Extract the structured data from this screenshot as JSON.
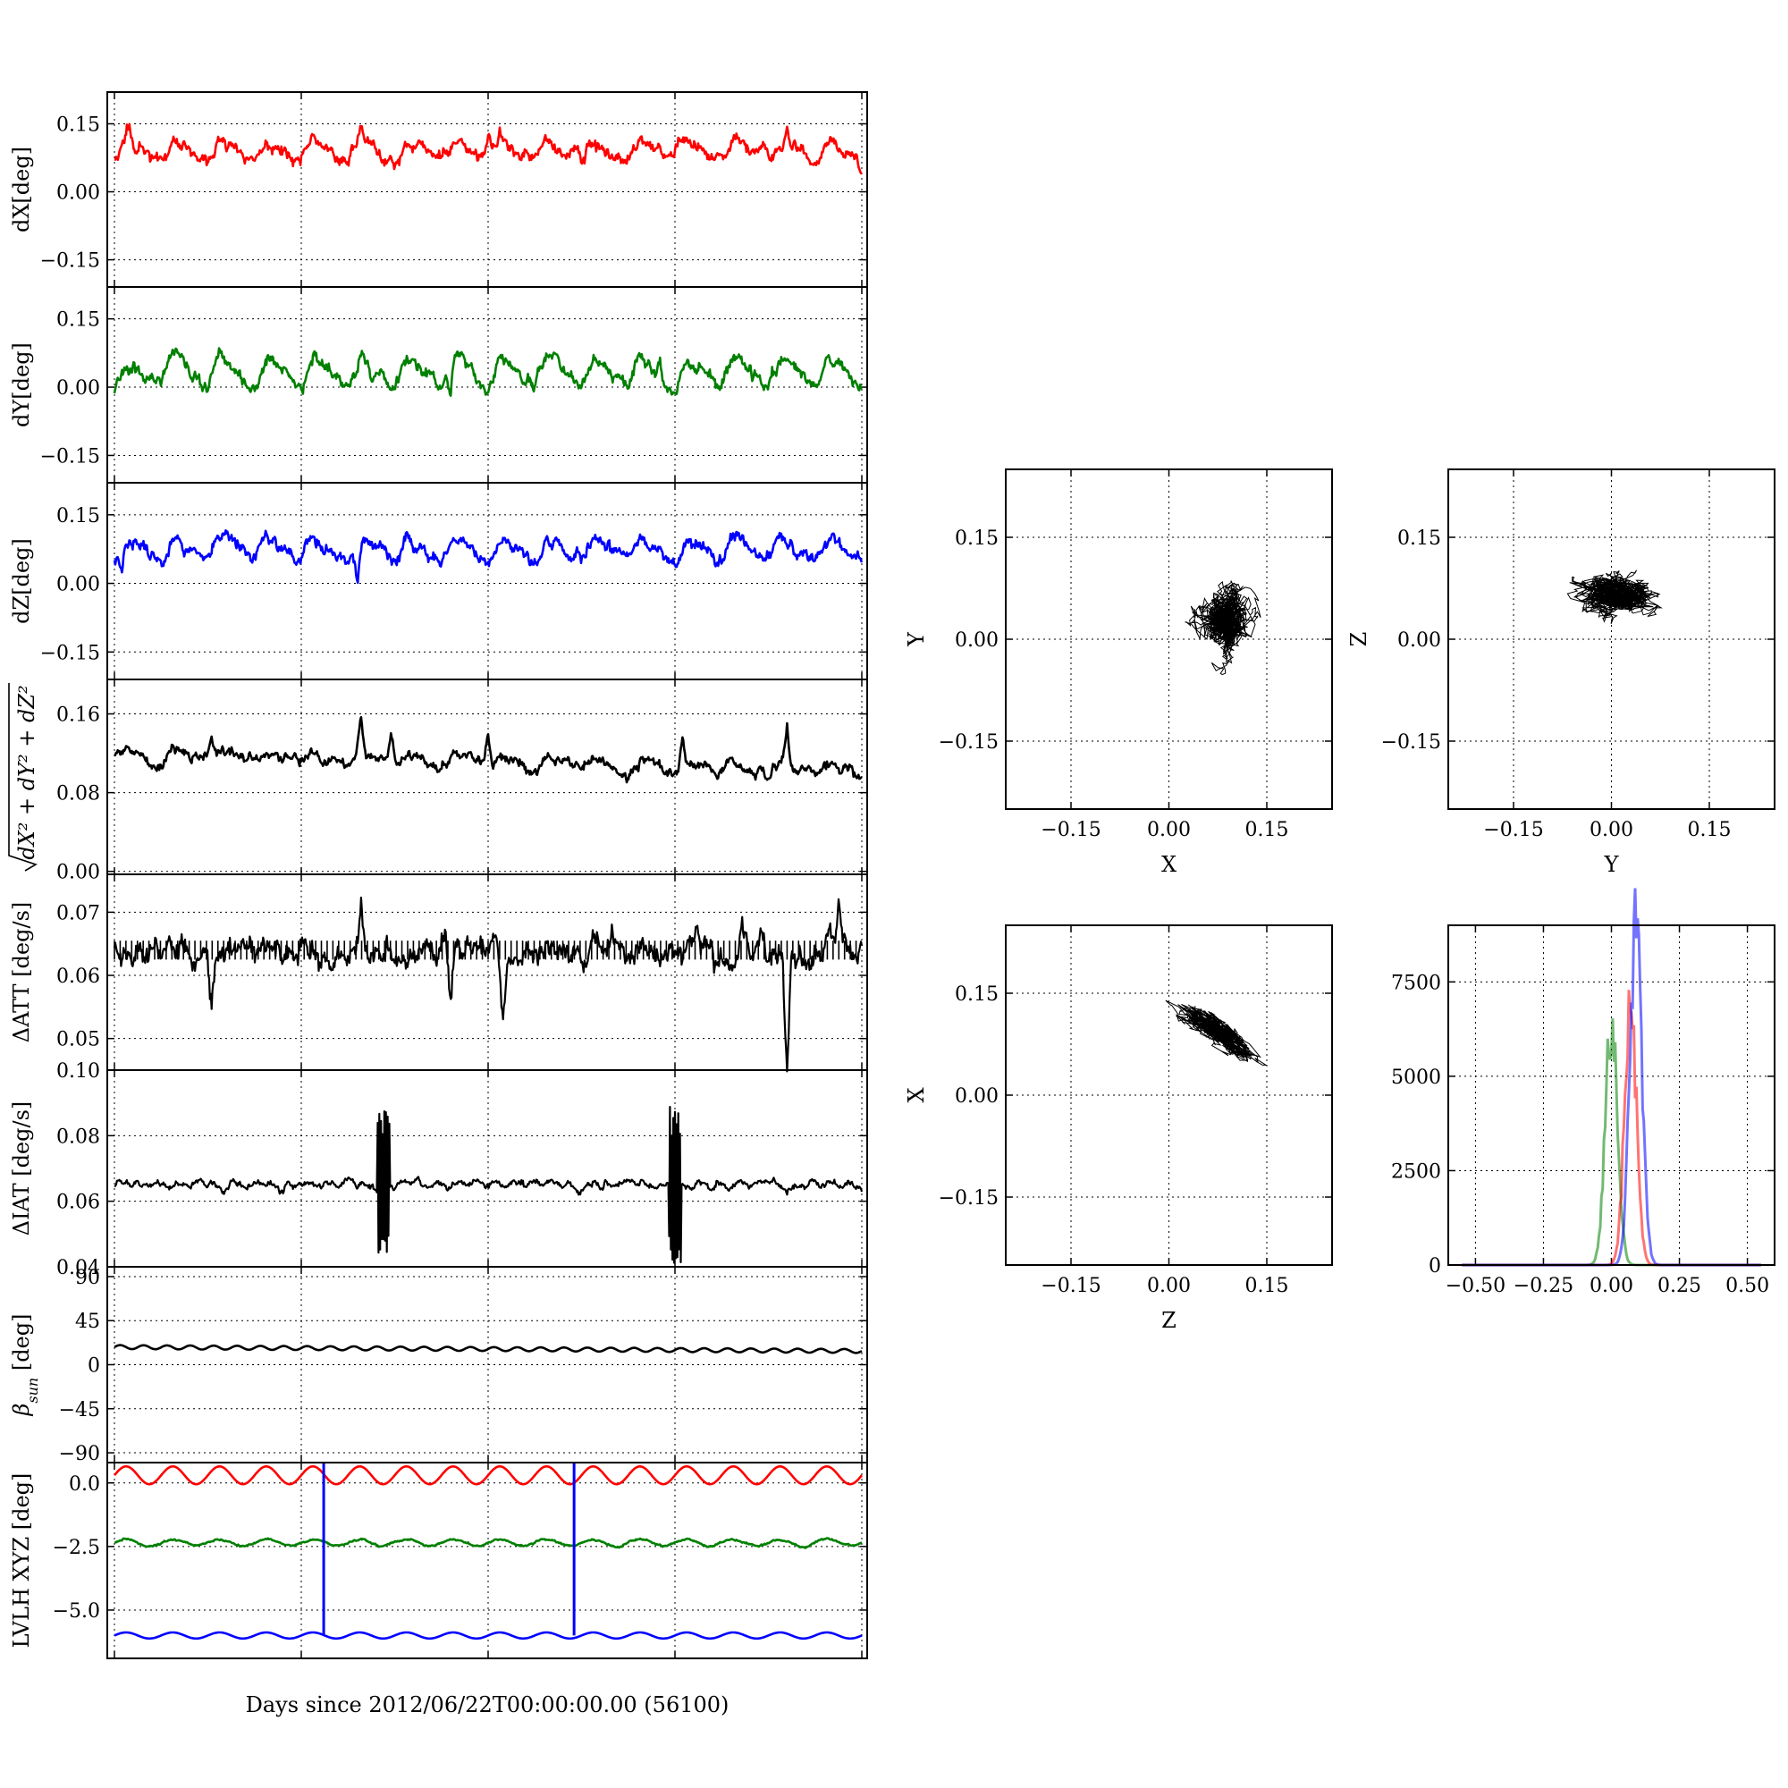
{
  "chart_data": [
    {
      "id": "dx",
      "type": "line",
      "ylabel": "dX[deg]",
      "ylim": [
        -0.21,
        0.22
      ],
      "yticks": [
        0.15,
        0.0,
        -0.15
      ],
      "ytick_labels": [
        "0.15",
        "0.00",
        "−0.15"
      ],
      "grid": true,
      "series": [
        {
          "color": "#ff0000",
          "baseline": 0.09,
          "amp": 0.022,
          "cycles": 16,
          "noise": 0.008,
          "seed": 11,
          "spikes": [
            [
              0.02,
              0.05
            ],
            [
              0.33,
              0.045
            ],
            [
              0.5,
              0.05
            ],
            [
              0.9,
              0.055
            ]
          ]
        }
      ]
    },
    {
      "id": "dy",
      "type": "line",
      "ylabel": "dY[deg]",
      "ylim": [
        -0.21,
        0.22
      ],
      "yticks": [
        0.15,
        0.0,
        -0.15
      ],
      "ytick_labels": [
        "0.15",
        "0.00",
        "−0.15"
      ],
      "grid": true,
      "series": [
        {
          "color": "#008000",
          "baseline": 0.03,
          "amp": 0.035,
          "cycles": 16,
          "noise": 0.008,
          "seed": 23,
          "spikes": [
            [
              0.45,
              -0.07
            ],
            [
              0.73,
              0.05
            ]
          ]
        }
      ]
    },
    {
      "id": "dz",
      "type": "line",
      "ylabel": "dZ[deg]",
      "ylim": [
        -0.21,
        0.22
      ],
      "yticks": [
        0.15,
        0.0,
        -0.15
      ],
      "ytick_labels": [
        "0.15",
        "0.00",
        "−0.15"
      ],
      "grid": true,
      "series": [
        {
          "color": "#0000ff",
          "baseline": 0.075,
          "amp": 0.025,
          "cycles": 16,
          "noise": 0.008,
          "seed": 37,
          "spikes": [
            [
              0.325,
              -0.09
            ],
            [
              0.01,
              -0.06
            ]
          ]
        }
      ]
    },
    {
      "id": "dr",
      "type": "line",
      "ylabel": "√(dX² + dY² + dZ²)",
      "ylim": [
        -0.003,
        0.195
      ],
      "yticks": [
        0.16,
        0.08,
        0.0
      ],
      "ytick_labels": [
        "0.16",
        "0.08",
        "0.00"
      ],
      "grid": true,
      "series": [
        {
          "color": "#000000",
          "baseline": 0.12,
          "trend": -0.018,
          "amp": 0.006,
          "cycles": 16,
          "noise": 0.003,
          "seed": 41,
          "spikes": [
            [
              0.13,
              0.02
            ],
            [
              0.33,
              0.035
            ],
            [
              0.37,
              0.03
            ],
            [
              0.5,
              0.035
            ],
            [
              0.76,
              0.03
            ],
            [
              0.9,
              0.04
            ]
          ]
        }
      ]
    },
    {
      "id": "datt",
      "type": "line",
      "ylabel": "ΔATT [deg/s]",
      "ylim": [
        0.045,
        0.076
      ],
      "yticks": [
        0.07,
        0.06,
        0.05
      ],
      "ytick_labels": [
        "0.07",
        "0.06",
        "0.05"
      ],
      "grid": true,
      "series": [
        {
          "color": "#000000",
          "baseline": 0.064,
          "amp": 0.0,
          "cycles": 0,
          "noise": 0.0012,
          "seed": 53,
          "spikes": [
            [
              0.13,
              -0.008
            ],
            [
              0.33,
              0.009
            ],
            [
              0.45,
              -0.007
            ],
            [
              0.52,
              -0.009
            ],
            [
              0.84,
              0.005
            ],
            [
              0.9,
              -0.02
            ],
            [
              0.97,
              0.006
            ]
          ]
        }
      ]
    },
    {
      "id": "diat",
      "type": "line",
      "ylabel": "ΔIAT [deg/s]",
      "ylim": [
        0.04,
        0.1
      ],
      "yticks": [
        0.1,
        0.08,
        0.06,
        0.04
      ],
      "ytick_labels": [
        "0.10",
        "0.08",
        "0.06",
        "0.04"
      ],
      "grid": true,
      "series": [
        {
          "color": "#000000",
          "baseline": 0.065,
          "amp": 0.0007,
          "cycles": 40,
          "noise": 0.0006,
          "seed": 61,
          "bursts": [
            [
              0.36,
              0.065,
              0.025
            ],
            [
              0.75,
              0.065,
              0.025
            ]
          ]
        }
      ]
    },
    {
      "id": "beta",
      "type": "line",
      "ylabel": "β_sun [deg]",
      "ylim": [
        -100,
        100
      ],
      "yticks": [
        90,
        45,
        0,
        -45,
        -90
      ],
      "ytick_labels": [
        "90",
        "45",
        "0",
        "−45",
        "−90"
      ],
      "grid": true,
      "series": [
        {
          "color": "#000000",
          "baseline": 18,
          "trend": -4,
          "amp": 2,
          "cycles": 32,
          "noise": 0.0,
          "seed": 71
        }
      ]
    },
    {
      "id": "lvlh",
      "type": "line",
      "ylabel": "LVLH XYZ [deg]",
      "xlabel": "Days since 2012/06/22T00:00:00.00 (56100)",
      "ylim": [
        -6.9,
        0.8
      ],
      "yticks": [
        0.0,
        -2.5,
        -5.0
      ],
      "ytick_labels": [
        "0.0",
        "−2.5",
        "−5.0"
      ],
      "grid": true,
      "series": [
        {
          "color": "#ff0000",
          "baseline": 0.3,
          "amp": 0.35,
          "cycles": 16,
          "noise": 0.0,
          "seed": 81
        },
        {
          "color": "#008000",
          "baseline": -2.35,
          "amp": 0.12,
          "cycles": 16,
          "noise": 0.02,
          "seed": 83
        },
        {
          "color": "#0000ff",
          "baseline": -6.0,
          "amp": 0.12,
          "cycles": 16,
          "noise": 0.0,
          "seed": 85,
          "vlines": [
            0.28,
            0.615
          ]
        }
      ]
    },
    {
      "id": "sc_xy",
      "type": "scatter",
      "xlabel": "X",
      "ylabel": "Y",
      "xlim": [
        -0.25,
        0.25
      ],
      "ylim": [
        -0.25,
        0.25
      ],
      "xticks": [
        -0.15,
        0.0,
        0.15
      ],
      "xtick_labels": [
        "−0.15",
        "0.00",
        "0.15"
      ],
      "yticks": [
        0.15,
        0.0,
        -0.15
      ],
      "ytick_labels": [
        "0.15",
        "0.00",
        "−0.15"
      ],
      "grid": true,
      "cloud": {
        "cx": 0.09,
        "cy": 0.03,
        "sx": 0.025,
        "sy": 0.03,
        "rot": 0.0,
        "n": 1400,
        "seed": 91,
        "color": "#000000"
      }
    },
    {
      "id": "sc_yz",
      "type": "scatter",
      "xlabel": "Y",
      "ylabel": "Z",
      "xlim": [
        -0.25,
        0.25
      ],
      "ylim": [
        -0.25,
        0.25
      ],
      "xticks": [
        -0.15,
        0.0,
        0.15
      ],
      "xtick_labels": [
        "−0.15",
        "0.00",
        "0.15"
      ],
      "yticks": [
        0.15,
        0.0,
        -0.15
      ],
      "ytick_labels": [
        "0.15",
        "0.00",
        "−0.15"
      ],
      "grid": true,
      "cloud": {
        "cx": 0.005,
        "cy": 0.07,
        "sx": 0.035,
        "sy": 0.02,
        "rot": 0.0,
        "n": 1400,
        "seed": 93,
        "color": "#000000"
      }
    },
    {
      "id": "sc_zx",
      "type": "scatter",
      "xlabel": "Z",
      "ylabel": "X",
      "xlim": [
        -0.25,
        0.25
      ],
      "ylim": [
        -0.25,
        0.25
      ],
      "xticks": [
        -0.15,
        0.0,
        0.15
      ],
      "xtick_labels": [
        "−0.15",
        "0.00",
        "0.15"
      ],
      "yticks": [
        0.15,
        0.0,
        -0.15
      ],
      "ytick_labels": [
        "0.15",
        "0.00",
        "−0.15"
      ],
      "grid": true,
      "cloud": {
        "cx": 0.075,
        "cy": 0.09,
        "sx": 0.035,
        "sy": 0.012,
        "rot": -0.6,
        "n": 1400,
        "seed": 95,
        "color": "#000000"
      }
    },
    {
      "id": "hist",
      "type": "line",
      "xlim": [
        -0.6,
        0.6
      ],
      "ylim": [
        0,
        9000
      ],
      "xticks": [
        -0.5,
        -0.25,
        0.0,
        0.25,
        0.5
      ],
      "xtick_labels": [
        "−0.50",
        "−0.25",
        "0.00",
        "0.25",
        "0.50"
      ],
      "yticks": [
        7500,
        5000,
        2500,
        0
      ],
      "ytick_labels": [
        "7500",
        "5000",
        "2500",
        "0"
      ],
      "grid": true,
      "series": [
        {
          "color": "#008000",
          "mu": 0.0,
          "sigma": 0.022,
          "peak": 6500,
          "seed": 101
        },
        {
          "color": "#ff0000",
          "mu": 0.07,
          "sigma": 0.022,
          "peak": 6700,
          "seed": 103
        },
        {
          "color": "#0000ff",
          "mu": 0.09,
          "sigma": 0.022,
          "peak": 8800,
          "seed": 105
        }
      ]
    }
  ]
}
